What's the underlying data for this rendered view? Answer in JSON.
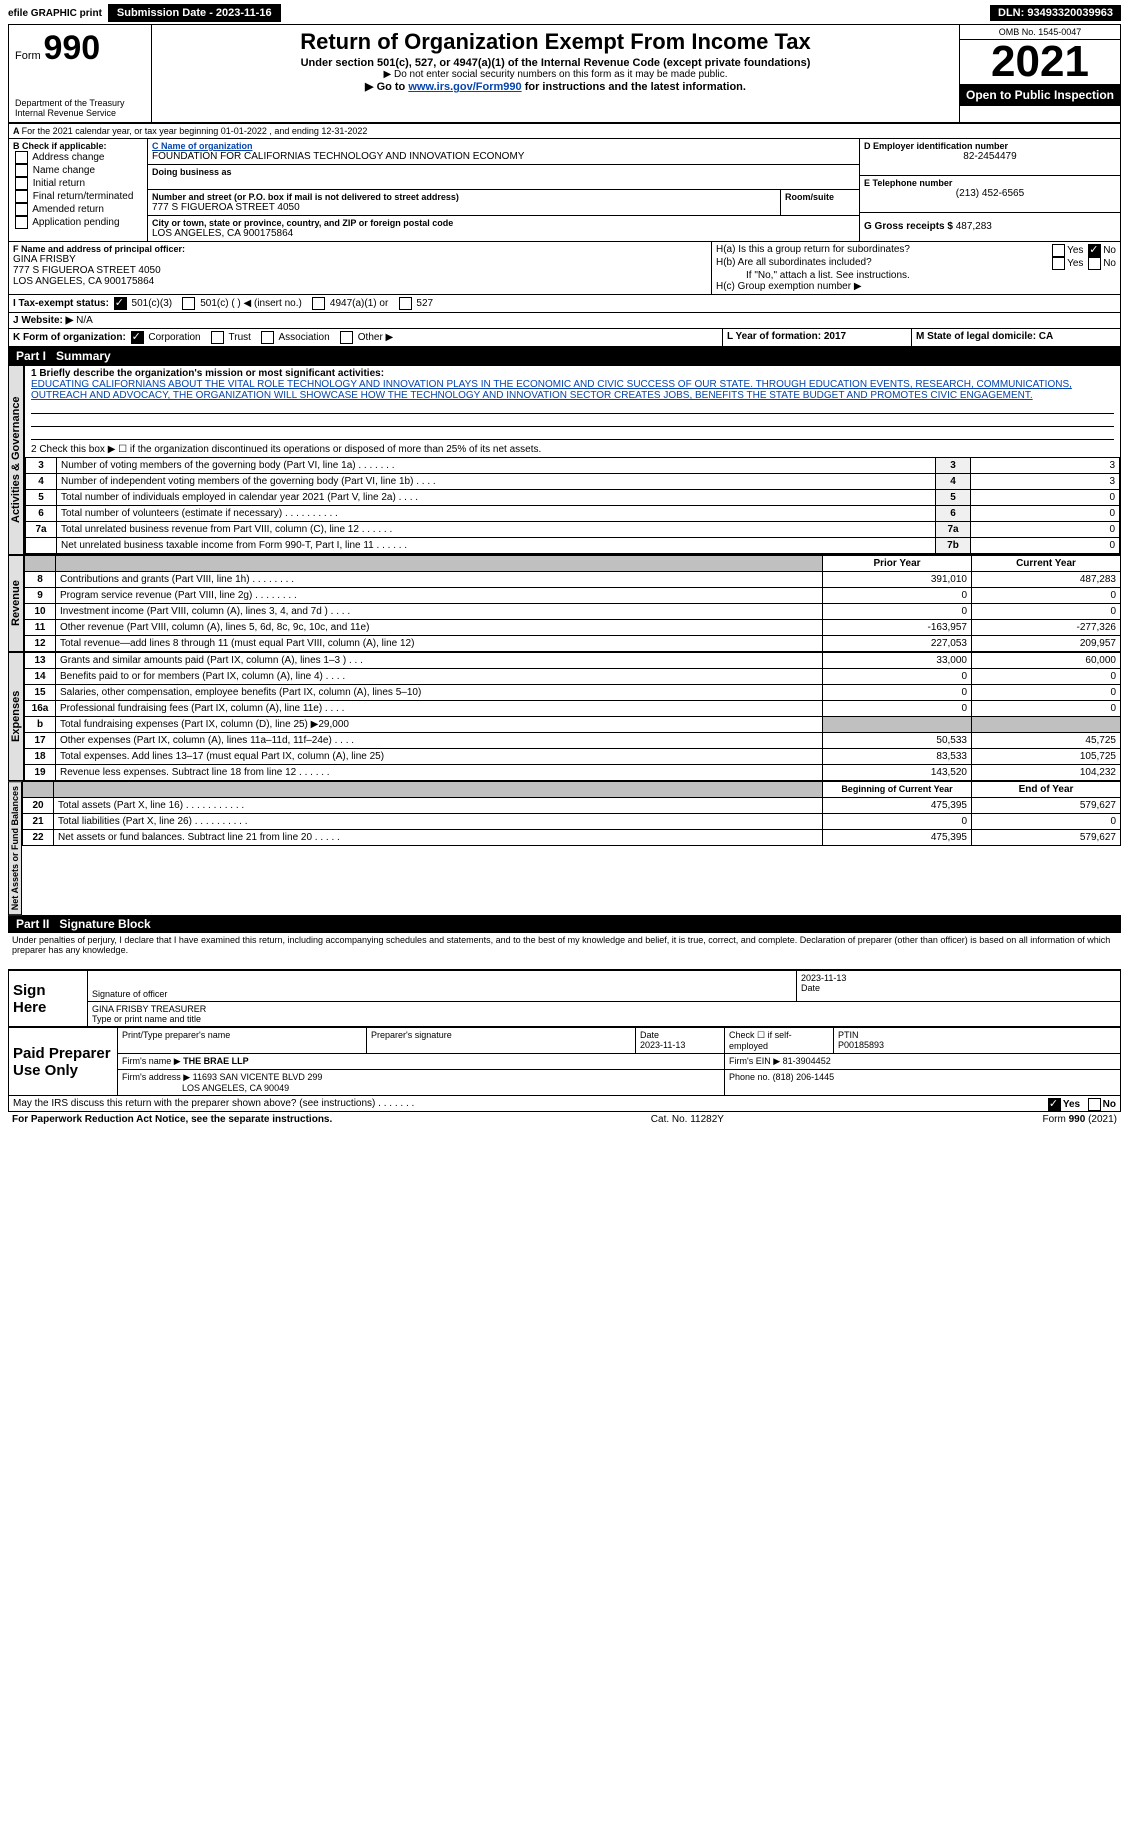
{
  "topbar": {
    "efile": "efile GRAPHIC print",
    "subdate_lbl": "Submission Date - 2023-11-16",
    "dln": "DLN: 93493320039963"
  },
  "header": {
    "form_prefix": "Form",
    "form_num": "990",
    "dept": "Department of the Treasury",
    "irs": "Internal Revenue Service",
    "title": "Return of Organization Exempt From Income Tax",
    "sub1": "Under section 501(c), 527, or 4947(a)(1) of the Internal Revenue Code (except private foundations)",
    "sub2": "▶ Do not enter social security numbers on this form as it may be made public.",
    "sub3_pre": "▶ Go to ",
    "sub3_link": "www.irs.gov/Form990",
    "sub3_post": " for instructions and the latest information.",
    "omb": "OMB No. 1545-0047",
    "year": "2021",
    "open": "Open to Public Inspection"
  },
  "a": {
    "text": "For the 2021 calendar year, or tax year beginning 01-01-2022   , and ending 12-31-2022"
  },
  "b": {
    "lbl": "B Check if applicable:",
    "opts": [
      "Address change",
      "Name change",
      "Initial return",
      "Final return/terminated",
      "Amended return",
      "Application pending"
    ]
  },
  "c": {
    "lbl": "C Name of organization",
    "name": "FOUNDATION FOR CALIFORNIAS TECHNOLOGY AND INNOVATION ECONOMY",
    "dba_lbl": "Doing business as",
    "dba": "",
    "addr_lbl": "Number and street (or P.O. box if mail is not delivered to street address)",
    "addr": "777 S FIGUEROA STREET 4050",
    "room_lbl": "Room/suite",
    "room": "",
    "city_lbl": "City or town, state or province, country, and ZIP or foreign postal code",
    "city": "LOS ANGELES, CA  900175864"
  },
  "d": {
    "lbl": "D Employer identification number",
    "val": "82-2454479"
  },
  "e": {
    "lbl": "E Telephone number",
    "val": "(213) 452-6565"
  },
  "g": {
    "lbl": "G Gross receipts $",
    "val": "487,283"
  },
  "f": {
    "lbl": "F Name and address of principal officer:",
    "name": "GINA FRISBY",
    "addr1": "777 S FIGUEROA STREET 4050",
    "addr2": "LOS ANGELES, CA  900175864"
  },
  "h": {
    "a_lbl": "H(a)  Is this a group return for subordinates?",
    "b_lbl": "H(b)  Are all subordinates included?",
    "note": "If \"No,\" attach a list. See instructions.",
    "c_lbl": "H(c)  Group exemption number ▶",
    "yes": "Yes",
    "no": "No"
  },
  "i": {
    "lbl": "I   Tax-exempt status:",
    "opts": [
      "501(c)(3)",
      "501(c) (  ) ◀ (insert no.)",
      "4947(a)(1) or",
      "527"
    ]
  },
  "j": {
    "lbl": "J   Website: ▶",
    "val": "N/A"
  },
  "k": {
    "lbl": "K Form of organization:",
    "opts": [
      "Corporation",
      "Trust",
      "Association",
      "Other ▶"
    ]
  },
  "l": {
    "lbl": "L Year of formation: 2017"
  },
  "m": {
    "lbl": "M State of legal domicile: CA"
  },
  "part1": {
    "title": "Part I",
    "subtitle": "Summary"
  },
  "activities": {
    "tab": "Activities & Governance",
    "l1_lbl": "1  Briefly describe the organization's mission or most significant activities:",
    "l1_txt": "EDUCATING CALIFORNIANS ABOUT THE VITAL ROLE TECHNOLOGY AND INNOVATION PLAYS IN THE ECONOMIC AND CIVIC SUCCESS OF OUR STATE. THROUGH EDUCATION EVENTS, RESEARCH, COMMUNICATIONS, OUTREACH AND ADVOCACY, THE ORGANIZATION WILL SHOWCASE HOW THE TECHNOLOGY AND INNOVATION SECTOR CREATES JOBS, BENEFITS THE STATE BUDGET AND PROMOTES CIVIC ENGAGEMENT.",
    "l2": "2   Check this box ▶ ☐ if the organization discontinued its operations or disposed of more than 25% of its net assets.",
    "rows": [
      {
        "n": "3",
        "d": "Number of voting members of the governing body (Part VI, line 1a)  .    .    .    .    .    .    .",
        "ln": "3",
        "v": "3"
      },
      {
        "n": "4",
        "d": "Number of independent voting members of the governing body (Part VI, line 1b)   .    .    .    .",
        "ln": "4",
        "v": "3"
      },
      {
        "n": "5",
        "d": "Total number of individuals employed in calendar year 2021 (Part V, line 2a)   .    .    .    .",
        "ln": "5",
        "v": "0"
      },
      {
        "n": "6",
        "d": "Total number of volunteers (estimate if necessary)    .    .    .    .    .    .    .    .    .    .",
        "ln": "6",
        "v": "0"
      },
      {
        "n": "7a",
        "d": "Total unrelated business revenue from Part VIII, column (C), line 12   .    .    .    .    .    .",
        "ln": "7a",
        "v": "0"
      },
      {
        "n": "",
        "d": "Net unrelated business taxable income from Form 990-T, Part I, line 11    .    .    .    .    .    .",
        "ln": "7b",
        "v": "0"
      }
    ]
  },
  "revenue": {
    "tab": "Revenue",
    "hdr_prior": "Prior Year",
    "hdr_curr": "Current Year",
    "rows": [
      {
        "n": "8",
        "d": "Contributions and grants (Part VIII, line 1h)   .    .    .    .    .    .    .    .",
        "p": "391,010",
        "c": "487,283"
      },
      {
        "n": "9",
        "d": "Program service revenue (Part VIII, line 2g)   .    .    .    .    .    .    .    .",
        "p": "0",
        "c": "0"
      },
      {
        "n": "10",
        "d": "Investment income (Part VIII, column (A), lines 3, 4, and 7d )   .    .    .    .",
        "p": "0",
        "c": "0"
      },
      {
        "n": "11",
        "d": "Other revenue (Part VIII, column (A), lines 5, 6d, 8c, 9c, 10c, and 11e)",
        "p": "-163,957",
        "c": "-277,326"
      },
      {
        "n": "12",
        "d": "Total revenue—add lines 8 through 11 (must equal Part VIII, column (A), line 12)",
        "p": "227,053",
        "c": "209,957"
      }
    ]
  },
  "expenses": {
    "tab": "Expenses",
    "rows": [
      {
        "n": "13",
        "d": "Grants and similar amounts paid (Part IX, column (A), lines 1–3 )   .    .    .",
        "p": "33,000",
        "c": "60,000"
      },
      {
        "n": "14",
        "d": "Benefits paid to or for members (Part IX, column (A), line 4)   .    .    .    .",
        "p": "0",
        "c": "0"
      },
      {
        "n": "15",
        "d": "Salaries, other compensation, employee benefits (Part IX, column (A), lines 5–10)",
        "p": "0",
        "c": "0"
      },
      {
        "n": "16a",
        "d": "Professional fundraising fees (Part IX, column (A), line 11e)   .    .    .    .",
        "p": "0",
        "c": "0"
      },
      {
        "n": "b",
        "d": "Total fundraising expenses (Part IX, column (D), line 25) ▶29,000",
        "p": "",
        "c": "",
        "grey": true
      },
      {
        "n": "17",
        "d": "Other expenses (Part IX, column (A), lines 11a–11d, 11f–24e)   .    .    .    .",
        "p": "50,533",
        "c": "45,725"
      },
      {
        "n": "18",
        "d": "Total expenses. Add lines 13–17 (must equal Part IX, column (A), line 25)",
        "p": "83,533",
        "c": "105,725"
      },
      {
        "n": "19",
        "d": "Revenue less expenses. Subtract line 18 from line 12   .    .    .    .    .    .",
        "p": "143,520",
        "c": "104,232"
      }
    ]
  },
  "netassets": {
    "tab": "Net Assets or Fund Balances",
    "hdr_beg": "Beginning of Current Year",
    "hdr_end": "End of Year",
    "rows": [
      {
        "n": "20",
        "d": "Total assets (Part X, line 16)   .    .    .    .    .    .    .    .    .    .    .",
        "p": "475,395",
        "c": "579,627"
      },
      {
        "n": "21",
        "d": "Total liabilities (Part X, line 26)   .    .    .    .    .    .    .    .    .    .",
        "p": "0",
        "c": "0"
      },
      {
        "n": "22",
        "d": "Net assets or fund balances. Subtract line 21 from line 20   .    .    .    .    .",
        "p": "475,395",
        "c": "579,627"
      }
    ]
  },
  "part2": {
    "title": "Part II",
    "subtitle": "Signature Block",
    "decl": "Under penalties of perjury, I declare that I have examined this return, including accompanying schedules and statements, and to the best of my knowledge and belief, it is true, correct, and complete. Declaration of preparer (other than officer) is based on all information of which preparer has any knowledge."
  },
  "sign": {
    "here": "Sign Here",
    "sig_lbl": "Signature of officer",
    "date_lbl": "Date",
    "date": "2023-11-13",
    "name": "GINA FRISBY  TREASURER",
    "name_lbl": "Type or print name and title"
  },
  "paid": {
    "title": "Paid Preparer Use Only",
    "h1": "Print/Type preparer's name",
    "h2": "Preparer's signature",
    "h3": "Date",
    "h3v": "2023-11-13",
    "h4": "Check ☐ if self-employed",
    "h5": "PTIN",
    "h5v": "P00185893",
    "firm_lbl": "Firm's name   ▶",
    "firm": "THE BRAE LLP",
    "ein_lbl": "Firm's EIN ▶",
    "ein": "81-3904452",
    "addr_lbl": "Firm's address ▶",
    "addr1": "11693 SAN VICENTE BLVD 299",
    "addr2": "LOS ANGELES, CA  90049",
    "phone_lbl": "Phone no.",
    "phone": "(818) 206-1445"
  },
  "discuss": {
    "q": "May the IRS discuss this return with the preparer shown above? (see instructions)    .    .    .    .    .    .    .",
    "yes": "Yes",
    "no": "No"
  },
  "footer": {
    "l": "For Paperwork Reduction Act Notice, see the separate instructions.",
    "c": "Cat. No. 11282Y",
    "r": "Form 990 (2021)"
  }
}
